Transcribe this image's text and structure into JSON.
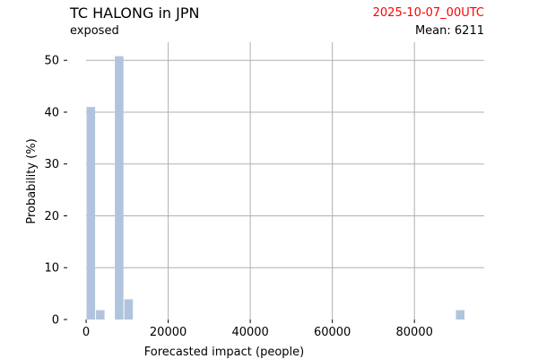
{
  "header": {
    "title": "TC HALONG in JPN",
    "subtitle": "exposed",
    "date": "2025-10-07_00UTC",
    "mean_prefix": "Mean:",
    "mean_value": "6211"
  },
  "colors": {
    "bar": "#b0c4de",
    "grid": "#b0b0b0",
    "date": "#ff0000"
  },
  "chart_data": {
    "type": "bar",
    "xlabel": "Forecasted impact (people)",
    "ylabel": "Probability (%)",
    "xlim": [
      -4600,
      97000
    ],
    "ylim": [
      0,
      53.5
    ],
    "xticks": [
      0,
      20000,
      40000,
      60000,
      80000
    ],
    "xtick_labels": [
      "0",
      "20000",
      "40000",
      "60000",
      "80000"
    ],
    "yticks": [
      0,
      10,
      20,
      30,
      40,
      50
    ],
    "ytick_labels": [
      "0",
      "10",
      "20",
      "30",
      "40",
      "50"
    ],
    "grid": true,
    "bin_width": 2300,
    "bins": [
      {
        "x": 1150,
        "value": 41
      },
      {
        "x": 3450,
        "value": 1.8
      },
      {
        "x": 8050,
        "value": 50.8
      },
      {
        "x": 10350,
        "value": 3.9
      },
      {
        "x": 91150,
        "value": 1.8
      }
    ]
  }
}
